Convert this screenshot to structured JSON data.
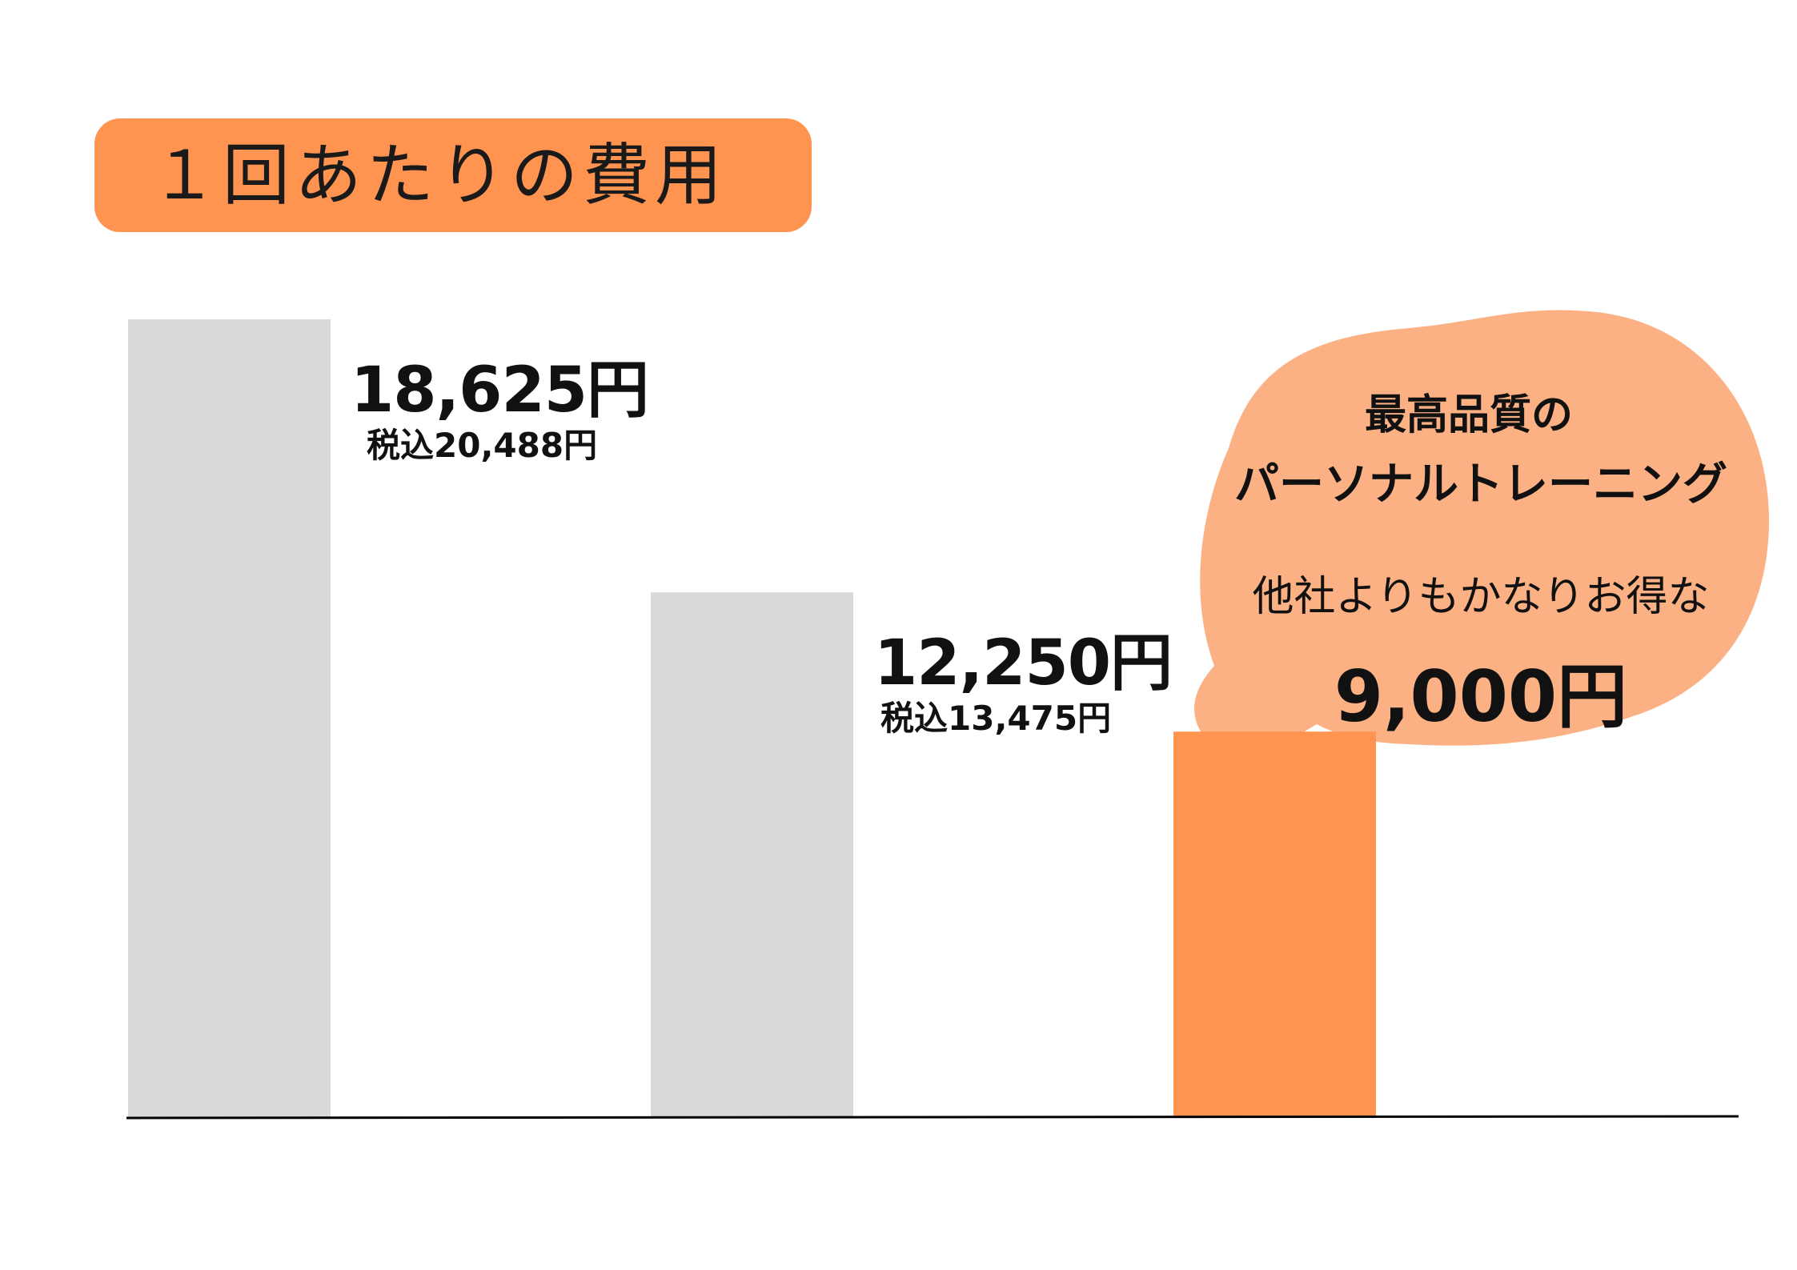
{
  "title": "１回あたりの費用",
  "colors": {
    "gray_bar": "#D9D9D9",
    "highlight_bar": "#FF9350",
    "title_bg": "#FF9350",
    "bubble": "#FBB184",
    "axis": "#000000"
  },
  "chart_data": {
    "type": "bar",
    "title": "１回あたりの費用",
    "xlabel": "",
    "ylabel": "",
    "ylim": [
      0,
      18625
    ],
    "grid": false,
    "categories": [
      "",
      "",
      ""
    ],
    "values": [
      18625,
      12250,
      9000
    ],
    "highlight_index": 2,
    "labels": [
      {
        "main": "18,625円",
        "sub": "税込20,488円"
      },
      {
        "main": "12,250円",
        "sub": "税込13,475円"
      }
    ]
  },
  "callout": {
    "line1": "最高品質の",
    "line2": "パーソナルトレーニング",
    "line3": "他社よりもかなりお得な",
    "price": "9,000円"
  }
}
